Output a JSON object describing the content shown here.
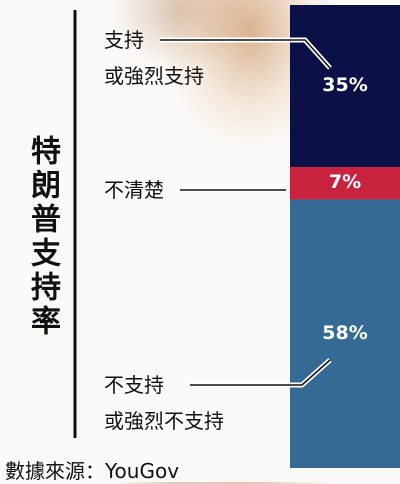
{
  "chart_data": {
    "type": "stacked-bar",
    "title": "特朗普支持率",
    "series": [
      {
        "name": "支持\n或強烈支持",
        "color": "#0b1147",
        "values": [
          35
        ],
        "value_labels": [
          "35%"
        ]
      },
      {
        "name": "不清楚",
        "color": "#c8223f",
        "values": [
          7
        ],
        "value_labels": [
          "7%"
        ]
      },
      {
        "name": "不支持\n或強烈不支持",
        "color": "#346a93",
        "values": [
          58
        ],
        "value_labels": [
          "58%"
        ]
      }
    ],
    "ylim": [
      0,
      100
    ],
    "source": "數據來源：YouGov"
  }
}
